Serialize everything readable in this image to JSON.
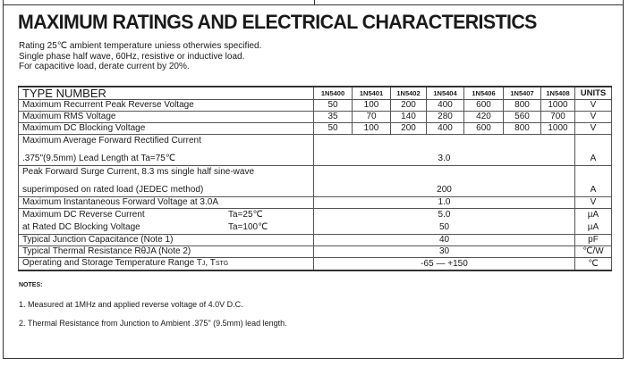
{
  "title": "MAXIMUM RATINGS AND ELECTRICAL CHARACTERISTICS",
  "intro": [
    "Rating 25℃ ambient temperature uniess otherwies specified.",
    "Single phase half wave, 60Hz, resistive or inductive load.",
    "For capacitive load, derate current by 20%."
  ],
  "table": {
    "type_header": "TYPE NUMBER",
    "parts": [
      "1N5400",
      "1N5401",
      "1N5402",
      "1N5404",
      "1N5406",
      "1N5407",
      "1N5408"
    ],
    "units_header": "UNITS",
    "rows": [
      {
        "label": "Maximum Recurrent Peak Reverse Voltage",
        "values": [
          "50",
          "100",
          "200",
          "400",
          "600",
          "800",
          "1000"
        ],
        "unit": "V"
      },
      {
        "label": "Maximum RMS Voltage",
        "values": [
          "35",
          "70",
          "140",
          "280",
          "420",
          "560",
          "700"
        ],
        "unit": "V"
      },
      {
        "label": "Maximum DC Blocking Voltage",
        "values": [
          "50",
          "100",
          "200",
          "400",
          "600",
          "800",
          "1000"
        ],
        "unit": "V"
      }
    ],
    "avg_forward": {
      "line1": "Maximum Average Forward Rectified Current",
      "line2": ".375\"(9.5mm) Lead Length at Ta=75℃",
      "value": "3.0",
      "unit": "A"
    },
    "surge": {
      "line1": "Peak Forward Surge Current, 8.3 ms single half sine-wave",
      "line2": "superimposed on rated load (JEDEC method)",
      "value": "200",
      "unit": "A"
    },
    "forward_voltage": {
      "label": "Maximum Instantaneous Forward Voltage at 3.0A",
      "value": "1.0",
      "unit": "V"
    },
    "reverse_current": {
      "line1": "Maximum DC Reverse Current",
      "cond1": "Ta=25℃",
      "value1": "5.0",
      "unit1": "µA",
      "line2": "at Rated DC Blocking Voltage",
      "cond2": "Ta=100℃",
      "value2": "50",
      "unit2": "µA"
    },
    "capacitance": {
      "label": "Typical Junction Capacitance (Note 1)",
      "value": "40",
      "unit": "pF"
    },
    "thermal": {
      "label": "Typical Thermal Resistance RθJA (Note 2)",
      "value": "30",
      "unit": "℃/W"
    },
    "temperature": {
      "label": "Operating and Storage Temperature Range T",
      "sub1": "J",
      "sep": ", T",
      "sub2": "STG",
      "value": "-65 — +150",
      "unit": "℃"
    }
  },
  "notes": {
    "heading": "NOTES:",
    "items": [
      "1. Measured at 1MHz and applied reverse voltage of 4.0V D.C.",
      "2. Thermal Resistance from Junction to Ambient .375\" (9.5mm) lead length."
    ]
  }
}
